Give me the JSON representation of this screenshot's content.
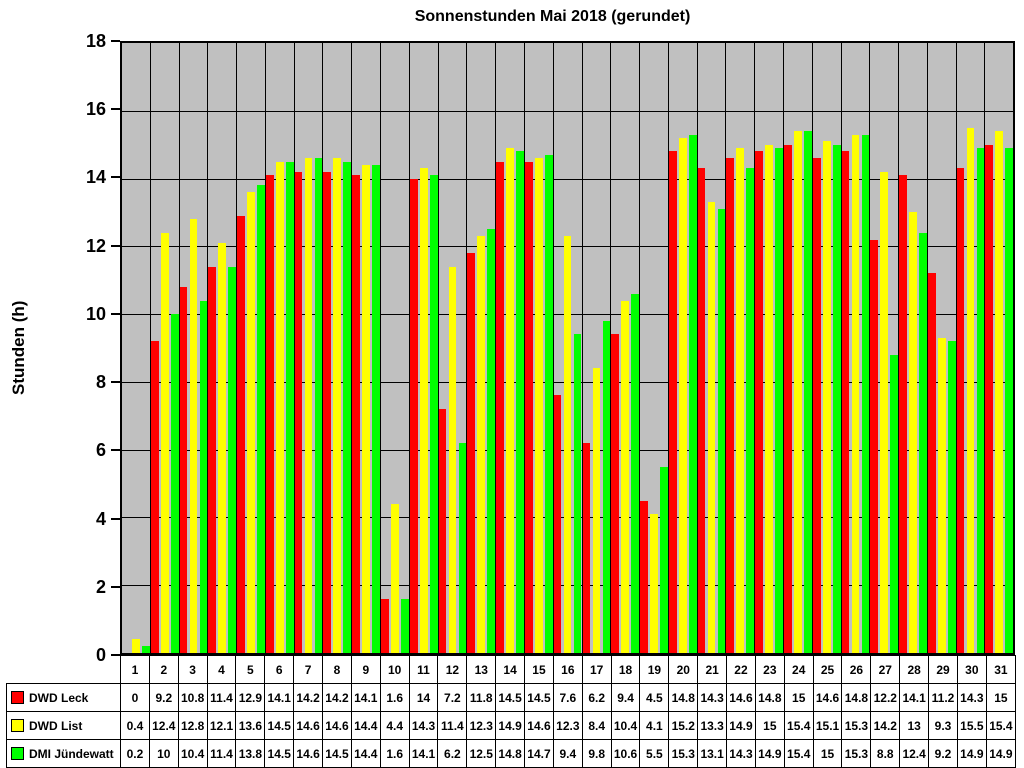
{
  "chart_data": {
    "type": "bar",
    "title": "Sonnenstunden Mai 2018 (gerundet)",
    "xlabel": "",
    "ylabel": "Stunden (h)",
    "ylim": [
      0,
      18
    ],
    "y_ticks": [
      0,
      2,
      4,
      6,
      8,
      10,
      12,
      14,
      16,
      18
    ],
    "grid": true,
    "plot_background_color": "#c0c0c0",
    "gridline_color": "#000000",
    "legend_position": "data-table-left-column",
    "has_data_table": true,
    "categories": [
      1,
      2,
      3,
      4,
      5,
      6,
      7,
      8,
      9,
      10,
      11,
      12,
      13,
      14,
      15,
      16,
      17,
      18,
      19,
      20,
      21,
      22,
      23,
      24,
      25,
      26,
      27,
      28,
      29,
      30,
      31
    ],
    "series": [
      {
        "name": "DWD Leck",
        "color": "#ff0000",
        "values": [
          0,
          9.2,
          10.8,
          11.4,
          12.9,
          14.1,
          14.2,
          14.2,
          14.1,
          1.6,
          14,
          7.2,
          11.8,
          14.5,
          14.5,
          7.6,
          6.2,
          9.4,
          4.5,
          14.8,
          14.3,
          14.6,
          14.8,
          15,
          14.6,
          14.8,
          12.2,
          14.1,
          11.2,
          14.3,
          15
        ]
      },
      {
        "name": "DWD List",
        "color": "#ffff00",
        "values": [
          0.4,
          12.4,
          12.8,
          12.1,
          13.6,
          14.5,
          14.6,
          14.6,
          14.4,
          4.4,
          14.3,
          11.4,
          12.3,
          14.9,
          14.6,
          12.3,
          8.4,
          10.4,
          4.1,
          15.2,
          13.3,
          14.9,
          15,
          15.4,
          15.1,
          15.3,
          14.2,
          13,
          9.3,
          15.5,
          15.4
        ]
      },
      {
        "name": "DMI Jündewatt",
        "color": "#00ff00",
        "values": [
          0.2,
          10,
          10.4,
          11.4,
          13.8,
          14.5,
          14.6,
          14.5,
          14.4,
          1.6,
          14.1,
          6.2,
          12.5,
          14.8,
          14.7,
          9.4,
          9.8,
          10.6,
          5.5,
          15.3,
          13.1,
          14.3,
          14.9,
          15.4,
          15,
          15.3,
          8.8,
          12.4,
          9.2,
          14.9,
          14.9
        ]
      }
    ]
  }
}
